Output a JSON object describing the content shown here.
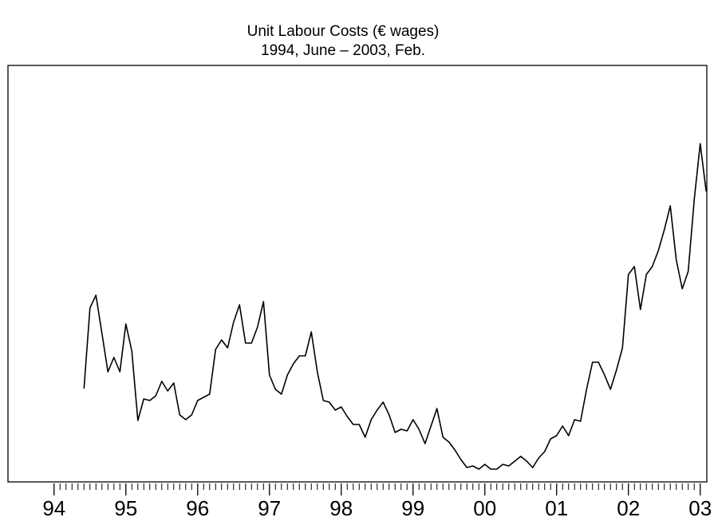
{
  "chart_data": {
    "type": "line",
    "title": "Unit Labour Costs (€ wages)",
    "subtitle": "1994, June – 2003, Feb.",
    "x": [
      1994.417,
      1994.5,
      1994.583,
      1994.667,
      1994.75,
      1994.833,
      1994.917,
      1995,
      1995.083,
      1995.167,
      1995.25,
      1995.333,
      1995.417,
      1995.5,
      1995.583,
      1995.667,
      1995.75,
      1995.833,
      1995.917,
      1996,
      1996.083,
      1996.167,
      1996.25,
      1996.333,
      1996.417,
      1996.5,
      1996.583,
      1996.667,
      1996.75,
      1996.833,
      1996.917,
      1997,
      1997.083,
      1997.167,
      1997.25,
      1997.333,
      1997.417,
      1997.5,
      1997.583,
      1997.667,
      1997.75,
      1997.833,
      1997.917,
      1998,
      1998.083,
      1998.167,
      1998.25,
      1998.333,
      1998.417,
      1998.5,
      1998.583,
      1998.667,
      1998.75,
      1998.833,
      1998.917,
      1999,
      1999.083,
      1999.167,
      1999.25,
      1999.333,
      1999.417,
      1999.5,
      1999.583,
      1999.667,
      1999.75,
      1999.833,
      1999.917,
      2000,
      2000.083,
      2000.167,
      2000.25,
      2000.333,
      2000.417,
      2000.5,
      2000.583,
      2000.667,
      2000.75,
      2000.833,
      2000.917,
      2001,
      2001.083,
      2001.167,
      2001.25,
      2001.333,
      2001.417,
      2001.5,
      2001.583,
      2001.667,
      2001.75,
      2001.833,
      2001.917,
      2002,
      2002.083,
      2002.167,
      2002.25,
      2002.333,
      2002.417,
      2002.5,
      2002.583,
      2002.667,
      2002.75,
      2002.833,
      2002.917,
      2003,
      2003.083
    ],
    "series": [
      {
        "color": "#000000",
        "values": [
          117,
          218,
          234,
          186,
          138,
          156,
          138,
          198,
          164,
          77,
          104,
          102,
          108,
          126,
          114,
          124,
          84,
          78,
          84,
          102,
          106,
          110,
          166,
          178,
          168,
          200,
          222,
          174,
          174,
          194,
          226,
          134,
          116,
          110,
          134,
          148,
          158,
          158,
          188,
          138,
          102,
          100,
          90,
          94,
          82,
          72,
          72,
          56,
          78,
          90,
          100,
          84,
          62,
          66,
          64,
          78,
          66,
          48,
          70,
          92,
          56,
          50,
          40,
          28,
          18,
          20,
          16,
          22,
          16,
          16,
          22,
          20,
          26,
          32,
          26,
          18,
          30,
          38,
          54,
          58,
          70,
          58,
          78,
          76,
          116,
          150,
          150,
          134,
          116,
          140,
          168,
          260,
          270,
          216,
          260,
          270,
          290,
          316,
          346,
          278,
          242,
          264,
          354,
          424,
          364
        ]
      }
    ],
    "xlim": [
      1993.358,
      2003.092
    ],
    "ylim": [
      0,
      522
    ],
    "xticks": [
      {
        "value": 1994,
        "label": "94"
      },
      {
        "value": 1995,
        "label": "95"
      },
      {
        "value": 1996,
        "label": "96"
      },
      {
        "value": 1997,
        "label": "97"
      },
      {
        "value": 1998,
        "label": "98"
      },
      {
        "value": 1999,
        "label": "99"
      },
      {
        "value": 2000,
        "label": "00"
      },
      {
        "value": 2001,
        "label": "01"
      },
      {
        "value": 2002,
        "label": "02"
      },
      {
        "value": 2003,
        "label": "03"
      }
    ],
    "minor_per_major": 12
  }
}
